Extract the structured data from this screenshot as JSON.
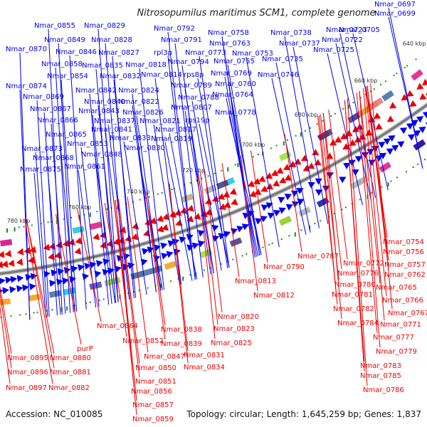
{
  "title": "Nitrosopumilus maritimus SCM1, complete genome",
  "footer": {
    "accession": "Accession: NC_010085",
    "summary": "Topology: circular; Length: 1,645,259 bp; Genes: 1,837"
  },
  "colors": {
    "forward_strand": "#0000ee",
    "reverse_strand": "#ee0000",
    "backbone": "#777777",
    "gc_skew_marks": "#1a8a1a"
  },
  "ticks": [
    "640 kbp",
    "660 kbp",
    "680 kbp",
    "700 kbp",
    "720 kbp",
    "740 kbp",
    "760 kbp",
    "780 kbp"
  ],
  "forward_labels": [
    "Nmar_0697",
    "Nmar_0699",
    "Nmar_0705",
    "Nmar_0723",
    "Nmar_0722",
    "Nmar_0725",
    "Nmar_0738",
    "Nmar_0737",
    "Nmar_0735",
    "Nmar_0758",
    "Nmar_0763",
    "Nmar_0753",
    "Nmar_0755",
    "Nmar_0773",
    "Nmar_0746",
    "Nmar_0769",
    "Nmar_0760",
    "Nmar_0764",
    "Nmar_0792",
    "Nmar_0791",
    "rpl3p",
    "Nmar_0794",
    "rps8p",
    "Nmar_0789",
    "Nmar_0788",
    "Nmar_0807",
    "Nmar_0778",
    "rps19p",
    "Nmar_0818",
    "Nmar_0814",
    "Nmar_0817",
    "Nmar_0819",
    "Nmar_0829",
    "Nmar_0828",
    "Nmar_0827",
    "Nmar_0835",
    "Nmar_0832",
    "Nmar_0824",
    "Nmar_0822",
    "Nmar_0826",
    "Nmar_0821",
    "Nmar_0842",
    "Nmar_0840",
    "Nmar_0843",
    "Nmar_0837",
    "Nmar_0841",
    "Nmar_0833",
    "Nmar_0830",
    "Nmar_0855",
    "Nmar_0849",
    "Nmar_0846",
    "Nmar_0858",
    "Nmar_0854",
    "Nmar_0853",
    "Nmar_0848",
    "Nmar_0861",
    "Nmar_0870",
    "Nmar_0874",
    "Nmar_0869",
    "Nmar_0867",
    "Nmar_0866",
    "Nmar_0865",
    "Nmar_0873",
    "Nmar_0868",
    "Nmar_0875"
  ],
  "reverse_labels": [
    "Nmar_0754",
    "Nmar_0756",
    "Nmar_0757",
    "Nmar_0762",
    "Nmar_0765",
    "Nmar_0766",
    "Nmar_0767",
    "Nmar_0771",
    "Nmar_0777",
    "Nmar_0779",
    "Nmar_0783",
    "Nmar_0785",
    "Nmar_0786",
    "Nmar_0787",
    "Nmar_0772",
    "Nmar_0776",
    "Nmar_0780",
    "Nmar_0781",
    "Nmar_0782",
    "Nmar_0784",
    "Nmar_0790",
    "Nmar_0813",
    "Nmar_0812",
    "Nmar_0820",
    "Nmar_0823",
    "Nmar_0825",
    "Nmar_0831",
    "Nmar_0834",
    "Nmar_0838",
    "Nmar_0839",
    "Nmar_0864",
    "Nmar_0852",
    "Nmar_0847",
    "Nmar_0850",
    "Nmar_0851",
    "Nmar_0856",
    "Nmar_0857",
    "Nmar_0859",
    "purP",
    "Nmar_0880",
    "Nmar_0881",
    "Nmar_0882",
    "Nmar_0895",
    "Nmar_0896",
    "Nmar_0897"
  ]
}
